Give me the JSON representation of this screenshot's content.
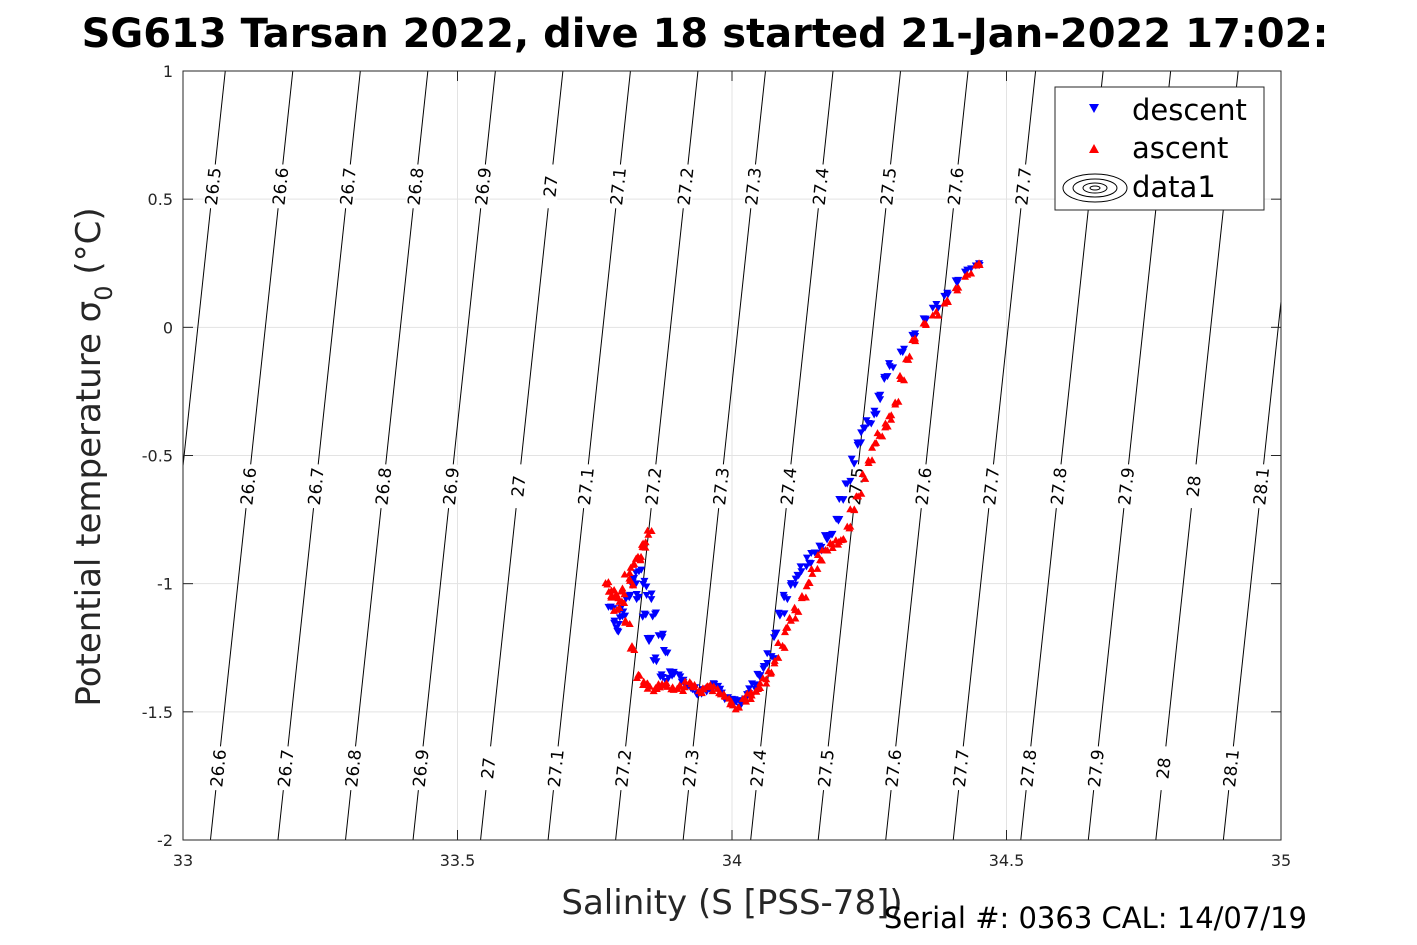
{
  "chart_data": {
    "type": "scatter",
    "title": "SG613 Tarsan 2022, dive 18 started 21-Jan-2022 17:02:",
    "xlabel": "Salinity (S [PSS-78])",
    "ylabel": "Potential temperature σ₀ (°C)",
    "ylabel_main": "Potential temperature σ",
    "ylabel_sub": "0",
    "ylabel_unit": " (°C)",
    "xlim": [
      33,
      35
    ],
    "ylim": [
      -2,
      1
    ],
    "x_ticks": [
      "33",
      "33.5",
      "34",
      "34.5",
      "35"
    ],
    "y_ticks": [
      "-2",
      "-1.5",
      "-1",
      "-0.5",
      "0",
      "0.5",
      "1"
    ],
    "grid": true,
    "legend_position": "top-right",
    "legend": [
      "descent",
      "ascent",
      "data1"
    ],
    "series": [
      {
        "name": "descent",
        "color": "#0000ff",
        "marker": "triangle-down",
        "x": [
          34.45,
          34.43,
          34.41,
          34.39,
          34.37,
          34.35,
          34.33,
          34.31,
          34.29,
          34.28,
          34.27,
          34.26,
          34.25,
          34.24,
          34.23,
          34.22,
          34.21,
          34.2,
          34.19,
          34.18,
          34.17,
          34.16,
          34.15,
          34.14,
          34.13,
          34.12,
          34.11,
          34.1,
          34.09,
          34.08,
          34.07,
          34.06,
          34.05,
          34.04,
          34.03,
          34.02,
          34.01,
          34.0,
          33.99,
          33.98,
          33.97,
          33.96,
          33.95,
          33.94,
          33.93,
          33.92,
          33.91,
          33.9,
          33.89,
          33.88,
          33.87,
          33.86,
          33.85,
          33.84,
          33.83,
          33.82,
          33.81,
          33.8,
          33.79,
          33.78,
          33.79,
          33.8,
          33.81,
          33.82,
          33.83,
          33.84,
          33.85,
          33.86,
          33.87,
          33.88
        ],
        "y": [
          0.25,
          0.22,
          0.18,
          0.13,
          0.08,
          0.03,
          -0.03,
          -0.09,
          -0.15,
          -0.2,
          -0.27,
          -0.33,
          -0.37,
          -0.4,
          -0.45,
          -0.52,
          -0.6,
          -0.68,
          -0.75,
          -0.8,
          -0.82,
          -0.86,
          -0.88,
          -0.91,
          -0.94,
          -0.97,
          -1.0,
          -1.05,
          -1.12,
          -1.2,
          -1.28,
          -1.32,
          -1.36,
          -1.4,
          -1.42,
          -1.45,
          -1.47,
          -1.46,
          -1.44,
          -1.42,
          -1.4,
          -1.41,
          -1.42,
          -1.43,
          -1.41,
          -1.4,
          -1.38,
          -1.36,
          -1.35,
          -1.37,
          -1.36,
          -1.3,
          -1.22,
          -1.12,
          -1.05,
          -1.0,
          -1.05,
          -1.1,
          -1.15,
          -1.1,
          -1.18,
          -1.12,
          -1.05,
          -0.98,
          -0.95,
          -1.0,
          -1.05,
          -1.12,
          -1.2,
          -1.26
        ]
      },
      {
        "name": "ascent",
        "color": "#ff0000",
        "marker": "triangle-up",
        "x": [
          34.45,
          34.43,
          34.41,
          34.39,
          34.37,
          34.35,
          34.33,
          34.32,
          34.31,
          34.3,
          34.29,
          34.28,
          34.27,
          34.26,
          34.25,
          34.24,
          34.23,
          34.22,
          34.21,
          34.2,
          34.19,
          34.18,
          34.17,
          34.16,
          34.15,
          34.14,
          34.13,
          34.12,
          34.11,
          34.1,
          34.09,
          34.08,
          34.07,
          34.06,
          34.05,
          34.04,
          34.03,
          34.02,
          34.01,
          34.0,
          33.99,
          33.98,
          33.97,
          33.96,
          33.95,
          33.94,
          33.93,
          33.92,
          33.91,
          33.9,
          33.89,
          33.88,
          33.87,
          33.86,
          33.85,
          33.84,
          33.83,
          33.82,
          33.81,
          33.8,
          33.79,
          33.78,
          33.77,
          33.78,
          33.79,
          33.8,
          33.81,
          33.82,
          33.83,
          33.84,
          33.85,
          33.84,
          33.83,
          33.82
        ],
        "y": [
          0.25,
          0.2,
          0.15,
          0.1,
          0.05,
          0.01,
          -0.05,
          -0.12,
          -0.2,
          -0.3,
          -0.35,
          -0.38,
          -0.42,
          -0.46,
          -0.52,
          -0.58,
          -0.65,
          -0.72,
          -0.78,
          -0.82,
          -0.84,
          -0.85,
          -0.87,
          -0.9,
          -0.95,
          -1.0,
          -1.05,
          -1.1,
          -1.14,
          -1.18,
          -1.24,
          -1.3,
          -1.35,
          -1.38,
          -1.4,
          -1.42,
          -1.44,
          -1.46,
          -1.48,
          -1.47,
          -1.45,
          -1.43,
          -1.41,
          -1.4,
          -1.41,
          -1.42,
          -1.4,
          -1.39,
          -1.41,
          -1.4,
          -1.41,
          -1.4,
          -1.4,
          -1.41,
          -1.4,
          -1.39,
          -1.36,
          -1.25,
          -1.15,
          -1.08,
          -1.05,
          -1.02,
          -1.0,
          -1.05,
          -1.1,
          -1.03,
          -0.97,
          -0.93,
          -0.9,
          -0.85,
          -0.8,
          -0.85,
          -0.9,
          -1.0
        ]
      },
      {
        "name": "data1",
        "color": "#000000",
        "marker": "contour"
      }
    ],
    "contour_labels": [
      "26.5",
      "26.6",
      "26.7",
      "26.8",
      "26.9",
      "27",
      "27.1",
      "27.2",
      "27.3",
      "27.4",
      "27.5",
      "27.6",
      "27.7",
      "27.8",
      "27.9",
      "28",
      "28.1"
    ]
  },
  "footer": {
    "serial": "Serial #: 0363  CAL: 14/07/19"
  }
}
